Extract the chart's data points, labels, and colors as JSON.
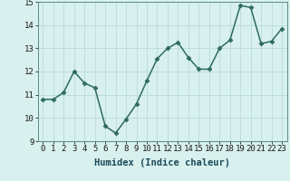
{
  "x": [
    0,
    1,
    2,
    3,
    4,
    5,
    6,
    7,
    8,
    9,
    10,
    11,
    12,
    13,
    14,
    15,
    16,
    17,
    18,
    19,
    20,
    21,
    22,
    23
  ],
  "y": [
    10.8,
    10.8,
    11.1,
    12.0,
    11.5,
    11.3,
    9.65,
    9.35,
    9.95,
    10.6,
    11.6,
    12.55,
    13.0,
    13.25,
    12.6,
    12.1,
    12.1,
    13.0,
    13.35,
    14.85,
    14.75,
    13.2,
    13.3,
    13.85
  ],
  "line_color": "#2e6b5e",
  "marker": "D",
  "marker_size": 2.5,
  "bg_color": "#d8f0ee",
  "grid_color": "#b8dcd8",
  "xlabel": "Humidex (Indice chaleur)",
  "ylim": [
    9,
    15
  ],
  "xlim": [
    -0.5,
    23.5
  ],
  "yticks": [
    9,
    10,
    11,
    12,
    13,
    14,
    15
  ],
  "xticks": [
    0,
    1,
    2,
    3,
    4,
    5,
    6,
    7,
    8,
    9,
    10,
    11,
    12,
    13,
    14,
    15,
    16,
    17,
    18,
    19,
    20,
    21,
    22,
    23
  ],
  "xlabel_fontsize": 7.5,
  "tick_fontsize": 6.5,
  "line_width": 1.1
}
